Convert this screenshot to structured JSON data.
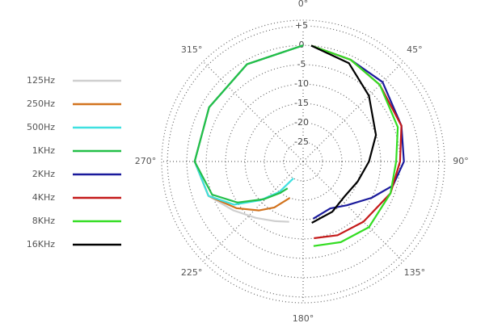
{
  "chart_data": {
    "type": "polar",
    "rlim": [
      -30,
      6.5
    ],
    "rticks": [
      {
        "value": 5,
        "label": "+5"
      },
      0,
      -5,
      -10,
      -15,
      -20,
      -25
    ],
    "thetaticks": [
      {
        "value": 0,
        "label": "0°"
      },
      {
        "value": 45,
        "label": "45°"
      },
      {
        "value": 90,
        "label": "90°"
      },
      {
        "value": 135,
        "label": "135°"
      },
      {
        "value": 180,
        "label": "180°"
      },
      {
        "value": 225,
        "label": "225°"
      },
      {
        "value": 270,
        "label": "270°"
      },
      {
        "value": 315,
        "label": "315°"
      }
    ],
    "series": [
      {
        "name": "125Hz",
        "color": "#cfcfcf",
        "theta": [
          360,
          330,
          300,
          270,
          250,
          235,
          220,
          205,
          193
        ],
        "values": [
          0,
          -1,
          -2,
          -2,
          -4,
          -8,
          -11,
          -13,
          -14
        ]
      },
      {
        "name": "250Hz",
        "color": "#d2731e",
        "theta": [
          360,
          330,
          300,
          270,
          250,
          235,
          222,
          212,
          200
        ],
        "values": [
          0,
          -1,
          -2,
          -2,
          -4,
          -9,
          -13,
          -16,
          -20
        ]
      },
      {
        "name": "500Hz",
        "color": "#3fe0e0",
        "theta": [
          360,
          330,
          300,
          270,
          250,
          238,
          228,
          218,
          210
        ],
        "values": [
          0,
          -1,
          -2,
          -2,
          -4,
          -9,
          -15,
          -20,
          -25
        ]
      },
      {
        "name": "1KHz",
        "color": "#22bf48",
        "theta": [
          360,
          330,
          300,
          270,
          250,
          238,
          226,
          216,
          210
        ],
        "values": [
          0,
          -1,
          -2,
          -2,
          -5,
          -10,
          -16,
          -20,
          -22
        ]
      },
      {
        "name": "2KHz",
        "color": "#1a1a9c",
        "theta": [
          4,
          25,
          45,
          70,
          90,
          105,
          118,
          135,
          150,
          170
        ],
        "values": [
          0,
          -1,
          -1,
          -3,
          -4,
          -6,
          -10,
          -14,
          -16,
          -15
        ]
      },
      {
        "name": "4KHz",
        "color": "#c41a1a",
        "theta": [
          4,
          25,
          45,
          70,
          90,
          110,
          135,
          155,
          172
        ],
        "values": [
          0,
          -1,
          -2,
          -3,
          -5,
          -6,
          -8,
          -9,
          -10
        ]
      },
      {
        "name": "8KHz",
        "color": "#33dd22",
        "theta": [
          4,
          25,
          45,
          70,
          90,
          110,
          135,
          155,
          173
        ],
        "values": [
          0,
          -1,
          -2,
          -4,
          -6,
          -6,
          -6,
          -7,
          -8
        ]
      },
      {
        "name": "16KHz",
        "color": "#000000",
        "theta": [
          4,
          25,
          45,
          70,
          90,
          110,
          130,
          150,
          172
        ],
        "values": [
          0,
          -2,
          -6,
          -10,
          -13,
          -15,
          -16,
          -15,
          -14
        ]
      }
    ]
  }
}
